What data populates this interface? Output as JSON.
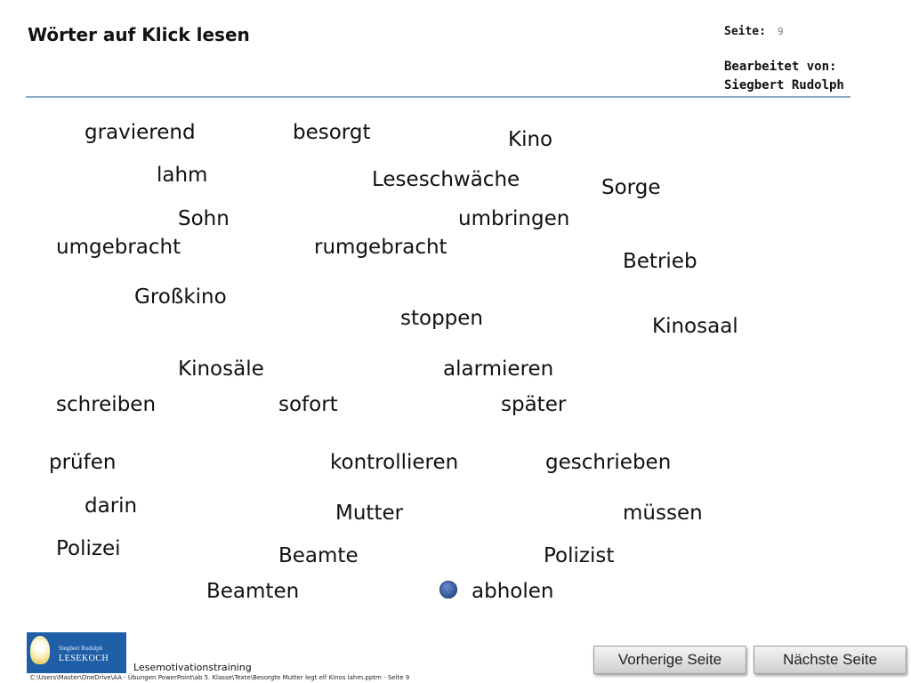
{
  "header": {
    "title": "Wörter auf Klick lesen",
    "page_label": "Seite:",
    "page_number": "9",
    "edited_label": "Bearbeitet von:",
    "author": "Siegbert Rudolph"
  },
  "words": [
    "gravierend",
    "besorgt",
    "Kino",
    "lahm",
    "Leseschwäche",
    "Sorge",
    "Sohn",
    "umbringen",
    "umgebracht",
    "rumgebracht",
    "Betrieb",
    "Großkino",
    "stoppen",
    "Kinosaal",
    "Kinosäle",
    "alarmieren",
    "schreiben",
    "sofort",
    "später",
    "prüfen",
    "kontrollieren",
    "geschrieben",
    "darin",
    "Mutter",
    "müssen",
    "Polizei",
    "Beamte",
    "Polizist",
    "Beamten",
    "abholen"
  ],
  "logo": {
    "line1": "Siegbert Rudolph",
    "line2": "LESEKOCH"
  },
  "footer": {
    "brand": "Lesemotivationstraining",
    "path": "C:\\Users\\Master\\OneDrive\\AA - Übungen PowerPoint\\ab 5. Klasse\\Texte\\Besorgte Mutter legt elf Kinos lahm.pptm - Seite 9"
  },
  "nav": {
    "prev_label": "Vorherige Seite",
    "next_label": "Nächste Seite"
  }
}
